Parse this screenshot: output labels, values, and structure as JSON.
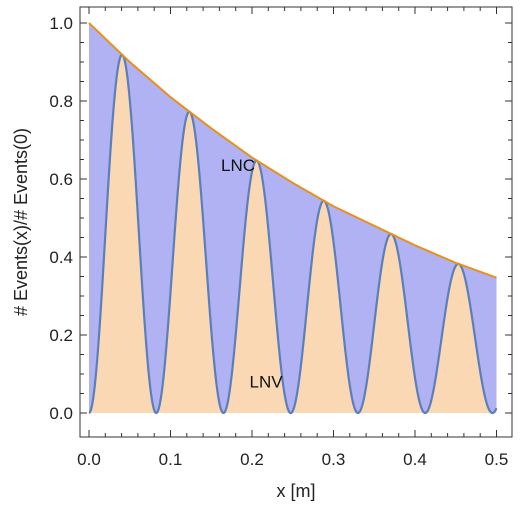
{
  "colors": {
    "envelope": "#E8901A",
    "oscillation": "#5B7FB8",
    "lnc_fill": "#B0B2F4",
    "lnv_fill": "#FBD8B4",
    "frame": "#333333"
  },
  "chart_data": {
    "type": "area",
    "xlabel": "x [m]",
    "ylabel": "# Events(x)/# Events(0)",
    "xlim": [
      0,
      0.5
    ],
    "ylim": [
      0,
      1.0
    ],
    "x_ticks": [
      "0.0",
      "0.1",
      "0.2",
      "0.3",
      "0.4",
      "0.5"
    ],
    "y_ticks": [
      "0.0",
      "0.2",
      "0.4",
      "0.6",
      "0.8",
      "1.0"
    ],
    "grid": false,
    "annotations": [
      {
        "text": "LNC",
        "x": 0.162,
        "y": 0.62
      },
      {
        "text": "LNV",
        "x": 0.197,
        "y": 0.065
      }
    ],
    "series": [
      {
        "description_of_shape": "envelope",
        "x": [
          0.0,
          0.05,
          0.1,
          0.15,
          0.2,
          0.25,
          0.3,
          0.35,
          0.4,
          0.45,
          0.5
        ],
        "values": [
          1.0,
          0.9,
          0.81,
          0.73,
          0.655,
          0.59,
          0.53,
          0.48,
          0.43,
          0.385,
          0.347
        ]
      },
      {
        "description_of_shape": "oscillation",
        "period": 0.0825,
        "x": [
          0.0,
          0.04,
          0.08,
          0.122,
          0.163,
          0.205,
          0.246,
          0.288,
          0.33,
          0.37,
          0.41,
          0.452,
          0.495
        ],
        "values": [
          0.0,
          0.92,
          0.0,
          0.775,
          0.0,
          0.645,
          0.0,
          0.545,
          0.0,
          0.455,
          0.0,
          0.38,
          0.0
        ]
      }
    ]
  }
}
